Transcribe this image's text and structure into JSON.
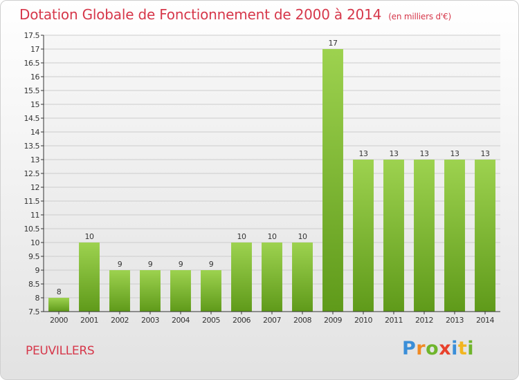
{
  "page": {
    "title": "Dotation Globale de Fonctionnement de 2000 à 2014",
    "subtitle": "(en milliers d'€)",
    "place_name": "PEUVILLERS",
    "logo": {
      "p": "P",
      "r": "r",
      "o": "o",
      "x": "x",
      "i1": "i",
      "t": "t",
      "i2": "i"
    }
  },
  "colors": {
    "title": "#d6374a",
    "bar_light": "#9dd24f",
    "bar_dark": "#5f9a1a",
    "axis": "#333333",
    "grid": "#cccccc"
  },
  "chart_data": {
    "type": "bar",
    "categories": [
      "2000",
      "2001",
      "2002",
      "2003",
      "2004",
      "2005",
      "2006",
      "2007",
      "2008",
      "2009",
      "2010",
      "2011",
      "2012",
      "2013",
      "2014"
    ],
    "values": [
      8,
      10,
      9,
      9,
      9,
      9,
      10,
      10,
      10,
      17,
      13,
      13,
      13,
      13,
      13
    ],
    "data_labels": [
      "8",
      "10",
      "9",
      "9",
      "9",
      "9",
      "10",
      "10",
      "10",
      "17",
      "13",
      "13",
      "13",
      "13",
      "13"
    ],
    "yticks": [
      7.5,
      8,
      8.5,
      9,
      9.5,
      10,
      10.5,
      11,
      11.5,
      12,
      12.5,
      13,
      13.5,
      14,
      14.5,
      15,
      15.5,
      16,
      16.5,
      17,
      17.5
    ],
    "ytick_labels": [
      "7.5",
      "8",
      "8.5",
      "9",
      "9.5",
      "10",
      "10.5",
      "11",
      "11.5",
      "12",
      "12.5",
      "13",
      "13.5",
      "14",
      "14.5",
      "15",
      "15.5",
      "16",
      "16.5",
      "17",
      "17.5"
    ],
    "ylim": [
      7.5,
      17.5
    ],
    "xlabel": "",
    "ylabel": "",
    "grid": true
  }
}
